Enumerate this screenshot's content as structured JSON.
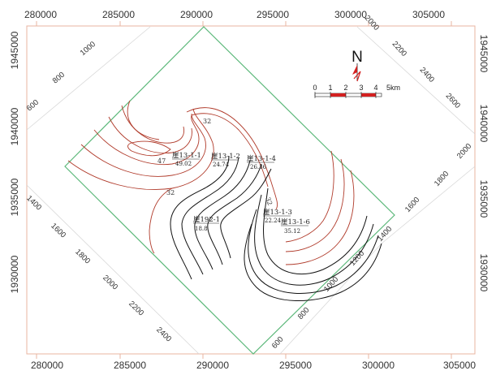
{
  "x_axis": {
    "top_ticks": [
      "280000",
      "285000",
      "290000",
      "295000",
      "300000",
      "305000"
    ],
    "bottom_ticks": [
      "280000",
      "285000",
      "290000",
      "295000",
      "300000",
      "305000"
    ]
  },
  "y_axis": {
    "left_ticks": [
      "1945000",
      "1940000",
      "1935000",
      "1930000"
    ],
    "right_ticks": [
      "1945000",
      "1940000",
      "1935000",
      "1930000"
    ]
  },
  "rotated_grid": {
    "upper_left_edge": [
      "600",
      "800",
      "1000"
    ],
    "upper_right_edge": [
      "2000",
      "2200",
      "2400",
      "2600",
      "2000"
    ],
    "lower_right_edge": [
      "600",
      "800",
      "1000",
      "1200",
      "1400"
    ],
    "lower_left_edge": [
      "1400",
      "1600",
      "1800",
      "2000",
      "2200",
      "2400"
    ],
    "right_side": [
      "1800",
      "1600"
    ]
  },
  "north_label": "N",
  "scale_bar": {
    "ticks": [
      "0",
      "1",
      "2",
      "3",
      "4"
    ],
    "unit": "5km"
  },
  "contour_labels": [
    "47",
    "32",
    "32",
    "32"
  ],
  "wells": [
    {
      "name": "崖13-1-1",
      "value": "49.02"
    },
    {
      "name": "崖13-1-2",
      "value": "24.74"
    },
    {
      "name": "崖13-1-4",
      "value": "26.36"
    },
    {
      "name": "崖192-1",
      "value": "18.8"
    },
    {
      "name": "崖13-1-3",
      "value": "22.24"
    },
    {
      "name": "崖13-1-6",
      "value": "35.12"
    }
  ],
  "colors": {
    "frame": "#e8b4a2",
    "boundary": "#5cb87a",
    "contour_red": "#b03a2a",
    "contour_black": "#111111",
    "scale_red": "#d42020"
  }
}
